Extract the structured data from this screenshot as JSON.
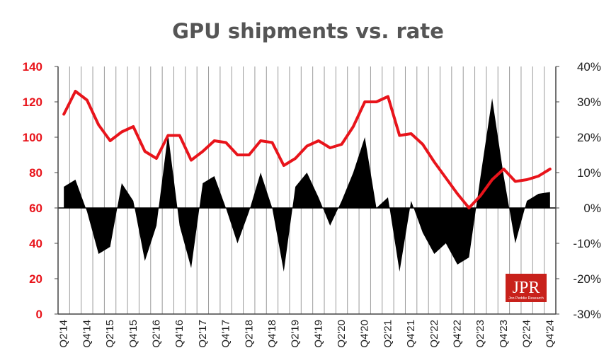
{
  "chart_data": {
    "type": "line",
    "title": "GPU shipments vs. rate",
    "x": [
      "Q2'14",
      "Q3'14",
      "Q4'14",
      "Q1'15",
      "Q2'15",
      "Q3'15",
      "Q4'15",
      "Q1'16",
      "Q2'16",
      "Q3'16",
      "Q4'16",
      "Q1'17",
      "Q2'17",
      "Q3'17",
      "Q4'17",
      "Q1'18",
      "Q2'18",
      "Q3'18",
      "Q4'18",
      "Q1'19",
      "Q2'19",
      "Q3'19",
      "Q4'19",
      "Q1'20",
      "Q2'20",
      "Q3'20",
      "Q4'20",
      "Q1'21",
      "Q2'21",
      "Q3'21",
      "Q4'21",
      "Q1'22",
      "Q2'22",
      "Q3'22",
      "Q4'22",
      "Q1'23",
      "Q2'23",
      "Q3'23",
      "Q4'23",
      "Q1'24",
      "Q2'24",
      "Q3'24",
      "Q4'24"
    ],
    "xtick_labels": [
      "Q2'14",
      "Q4'14",
      "Q2'15",
      "Q4'15",
      "Q2'16",
      "Q4'16",
      "Q2'17",
      "Q4'17",
      "Q2'18",
      "Q4'18",
      "Q2'19",
      "Q4'19",
      "Q2'20",
      "Q4'20",
      "Q2'21",
      "Q4'21",
      "Q2'22",
      "Q4'22",
      "Q2'23",
      "Q4'23",
      "Q2'24",
      "Q4'24"
    ],
    "left_axis": {
      "ylim": [
        0,
        140
      ],
      "ticks": [
        "0",
        "20",
        "40",
        "60",
        "80",
        "100",
        "120",
        "140"
      ],
      "color": "#e8141b"
    },
    "right_axis": {
      "ylim": [
        -30,
        40
      ],
      "ticks": [
        "-30%",
        "-20%",
        "-10%",
        "0%",
        "10%",
        "20%",
        "30%",
        "40%"
      ]
    },
    "grid": true,
    "series": [
      {
        "axis": "left",
        "type": "line",
        "color": "#e8141b",
        "values": [
          113,
          126,
          121,
          107,
          98,
          103,
          106,
          92,
          88,
          101,
          101,
          87,
          92,
          98,
          97,
          90,
          90,
          98,
          97,
          84,
          88,
          95,
          98,
          94,
          96,
          106,
          120,
          120,
          123,
          101,
          102,
          96,
          86,
          77,
          68,
          60,
          67,
          76,
          82,
          75,
          76,
          78,
          82
        ]
      },
      {
        "axis": "right",
        "type": "area",
        "color": "#000000",
        "values": [
          6,
          8,
          -1,
          -13,
          -11,
          7,
          2,
          -15,
          -5,
          21,
          -5,
          -17,
          7,
          9,
          0,
          -10,
          -1,
          10,
          0,
          -18,
          6,
          10,
          3,
          -5,
          2,
          10,
          20,
          0,
          3,
          -18,
          2,
          -7,
          -13,
          -10,
          -16,
          -14,
          9,
          31,
          9,
          -10,
          2,
          4,
          4.5
        ]
      }
    ]
  },
  "logo": {
    "text": "JPR",
    "subtext": "Jon Peddie Research"
  }
}
